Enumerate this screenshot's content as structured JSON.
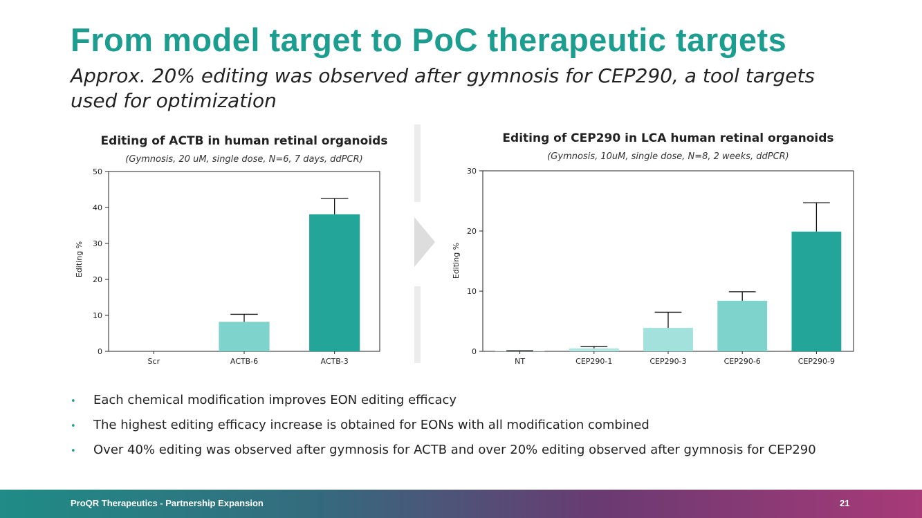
{
  "slide": {
    "title": "From model target to PoC therapeutic targets",
    "subtitle": "Approx. 20% editing was observed after gymnosis for CEP290, a tool targets used for optimization"
  },
  "chart_data": [
    {
      "type": "bar",
      "title": "Editing of ACTB in human retinal organoids",
      "subtitle": "(Gymnosis, 20 uM, single dose, N=6, 7 days, ddPCR)",
      "ylabel": "Editing %",
      "xlabel": "",
      "ylim": [
        0,
        50
      ],
      "yticks": [
        0,
        10,
        20,
        30,
        40,
        50
      ],
      "categories": [
        "Scr",
        "ACTB-6",
        "ACTB-3"
      ],
      "values": [
        0,
        8.2,
        38.1
      ],
      "errors": [
        0,
        2.1,
        4.4
      ],
      "colors": [
        "#ffffff",
        "#7fd3cd",
        "#24a59a"
      ],
      "grid": false
    },
    {
      "type": "bar",
      "title": "Editing of CEP290 in LCA human retinal organoids",
      "subtitle": "(Gymnosis, 10uM, single dose, N=8, 2 weeks, ddPCR)",
      "ylabel": "Editing %",
      "xlabel": "",
      "ylim": [
        0,
        30
      ],
      "yticks": [
        0,
        10,
        20,
        30
      ],
      "categories": [
        "NT",
        "CEP290-1",
        "CEP290-3",
        "CEP290-6",
        "CEP290-9"
      ],
      "values": [
        0.05,
        0.5,
        3.9,
        8.4,
        19.9
      ],
      "errors": [
        0.05,
        0.3,
        2.6,
        1.5,
        4.8
      ],
      "colors": [
        "#c9edea",
        "#b0e5e1",
        "#a3e1dc",
        "#7fd3cd",
        "#24a59a"
      ],
      "grid": false
    }
  ],
  "bullets": [
    "Each chemical modification improves EON editing efficacy",
    "The highest editing efficacy increase is obtained for EONs with all modification combined",
    "Over 40% editing was observed after gymnosis for ACTB and over 20% editing observed after gymnosis for CEP290"
  ],
  "footer": {
    "text": "ProQR Therapeutics - Partnership Expansion",
    "page": "21"
  },
  "colors": {
    "accent": "#1d9d8f",
    "bullet": "#1d9d8f"
  },
  "icons": {
    "divider_arrow": "chevron-right-icon"
  }
}
